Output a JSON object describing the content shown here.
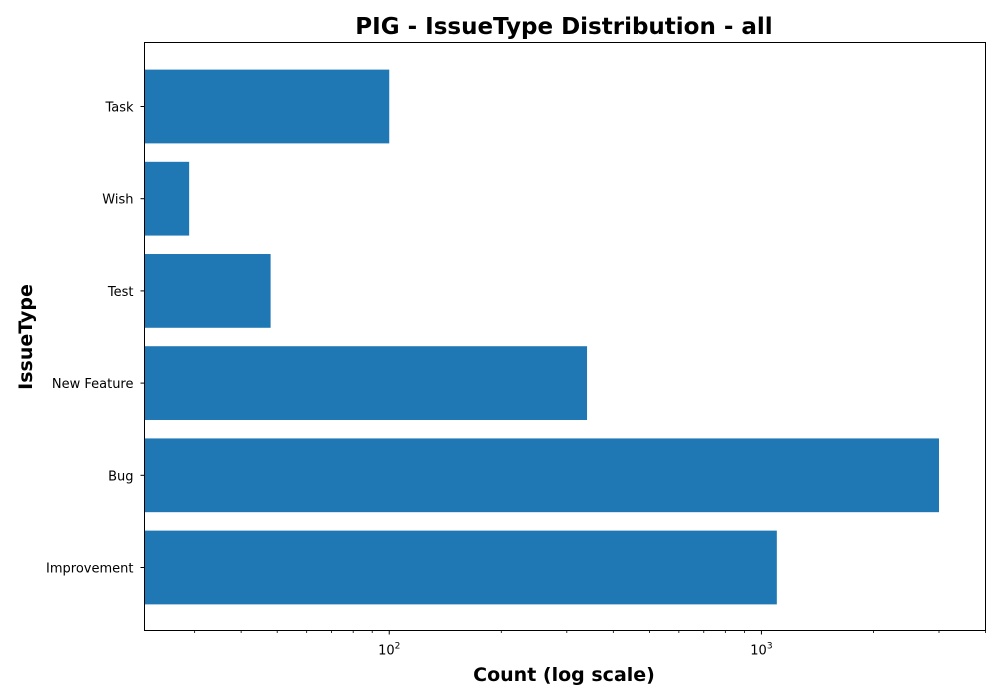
{
  "chart_data": {
    "type": "bar",
    "orientation": "horizontal",
    "title": "PIG - IssueType Distribution - all",
    "xlabel": "Count (log scale)",
    "ylabel": "IssueType",
    "x_scale": "log",
    "xlim": [
      22,
      4000
    ],
    "categories": [
      "Improvement",
      "Bug",
      "New Feature",
      "Test",
      "Wish",
      "Task"
    ],
    "values": [
      1100,
      3000,
      340,
      48,
      29,
      100
    ],
    "x_ticks": [
      {
        "base": "10",
        "exp": "2",
        "value": 100
      },
      {
        "base": "10",
        "exp": "3",
        "value": 1000
      }
    ],
    "bar_color": "#1f77b4",
    "grid": false,
    "legend": "none"
  }
}
